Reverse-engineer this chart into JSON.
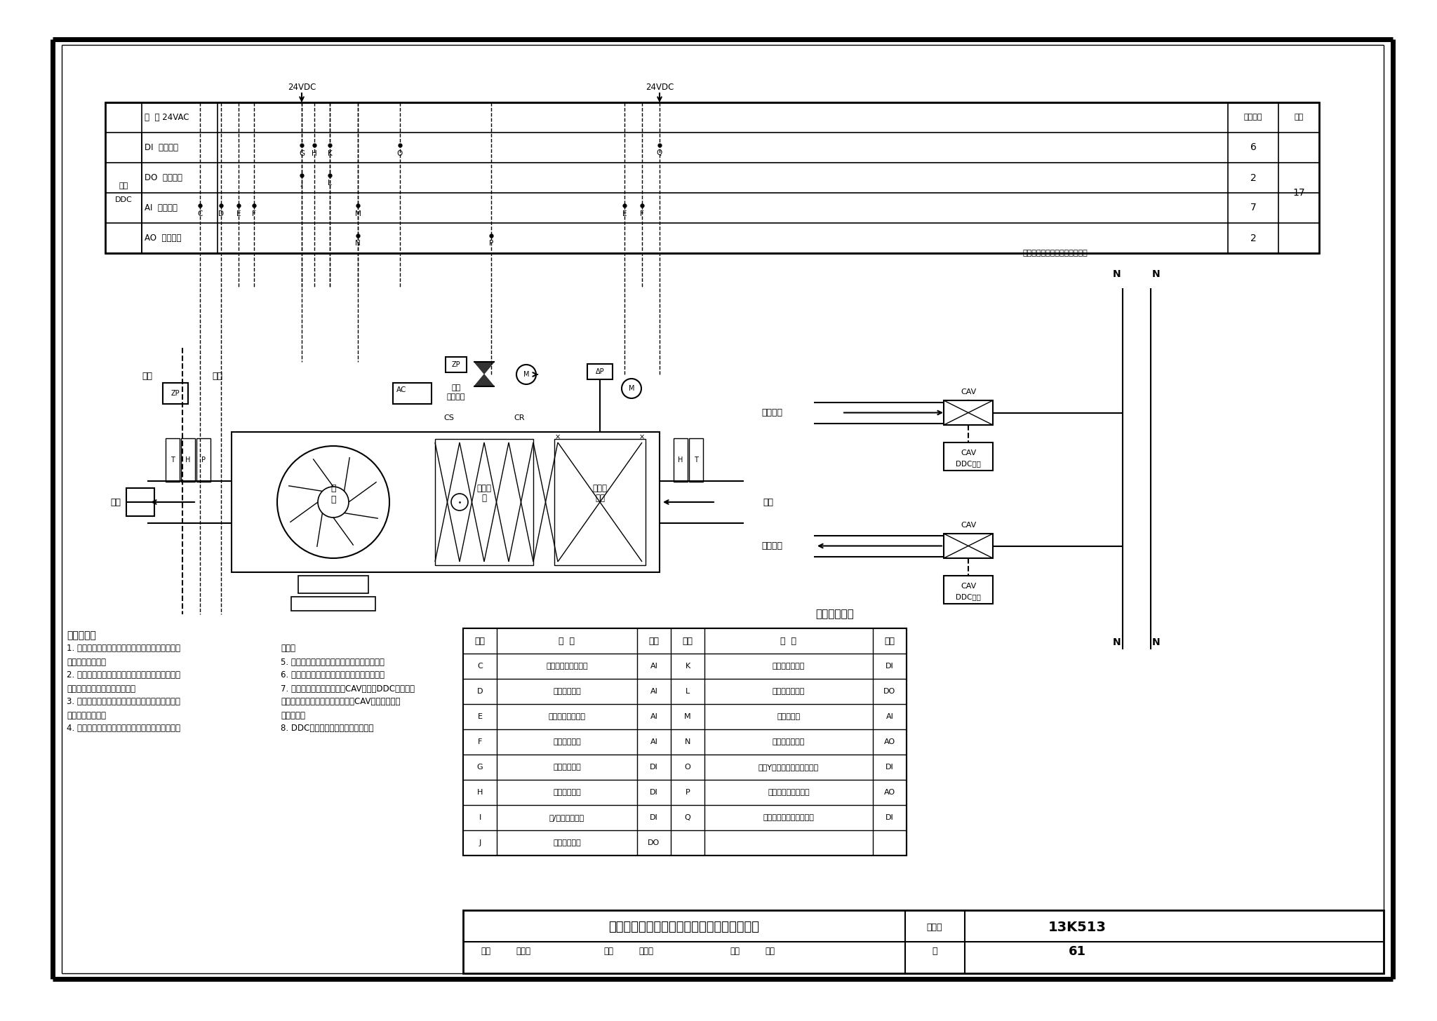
{
  "title": "集中新排风式定新风型单风机系统控制原理图",
  "figure_num": "13K513",
  "page": "61",
  "bg": "#ffffff",
  "monitor_table_rows": [
    [
      "C",
      "室内外压差检测信号",
      "AI",
      "K",
      "变频器故障报警",
      "DI"
    ],
    [
      "D",
      "静压检测信号",
      "AI",
      "L",
      "变频器开关控制",
      "DO"
    ],
    [
      "E",
      "相对湿度检测信号",
      "AI",
      "M",
      "变频器频率",
      "AI"
    ],
    [
      "F",
      "温度检测信号",
      "AI",
      "N",
      "变频器频率控制",
      "AO"
    ],
    [
      "G",
      "工作状态信号",
      "DI",
      "O",
      "盘管Y型过滤器压差报警信号",
      "DI"
    ],
    [
      "H",
      "故障状态信号",
      "DI",
      "P",
      "盘管电动调节阀控制",
      "AO"
    ],
    [
      "I",
      "手/自动转换信号",
      "DI",
      "Q",
      "空气过滤器压差报警信号",
      "DI"
    ],
    [
      "J",
      "启停控制信号",
      "DO",
      "",
      "",
      ""
    ]
  ],
  "monitor_content_left": [
    "监控内容：",
    "1. 全年自动比例积分调节冷水盘管电动调节阀，控",
    "制系统送风温度。",
    "2. 根据变风量系统风量控制方法，自动比例积分调",
    "节变频器频率，控制系统风量。",
    "3. 根据工作程序表或中央监控系统指令，自动或远",
    "程启停空调系统。",
    "4. 实现风机、变频器、空气过滤器、水过滤器监示"
  ],
  "monitor_content_right": [
    "报警。",
    "5. 检测送回风温度和相对湿度及送风静压值。",
    "6. 风机与电动调节阀、风量调节阀实现联锁。",
    "7. 系统新排风定风量装置（CAV）自带DDC控制器控",
    "制风量，中央监控系统可远程实现CAV新、排风量设",
    "定与启停。",
    "8. DDC控制器与中央监控系统通讯。"
  ]
}
